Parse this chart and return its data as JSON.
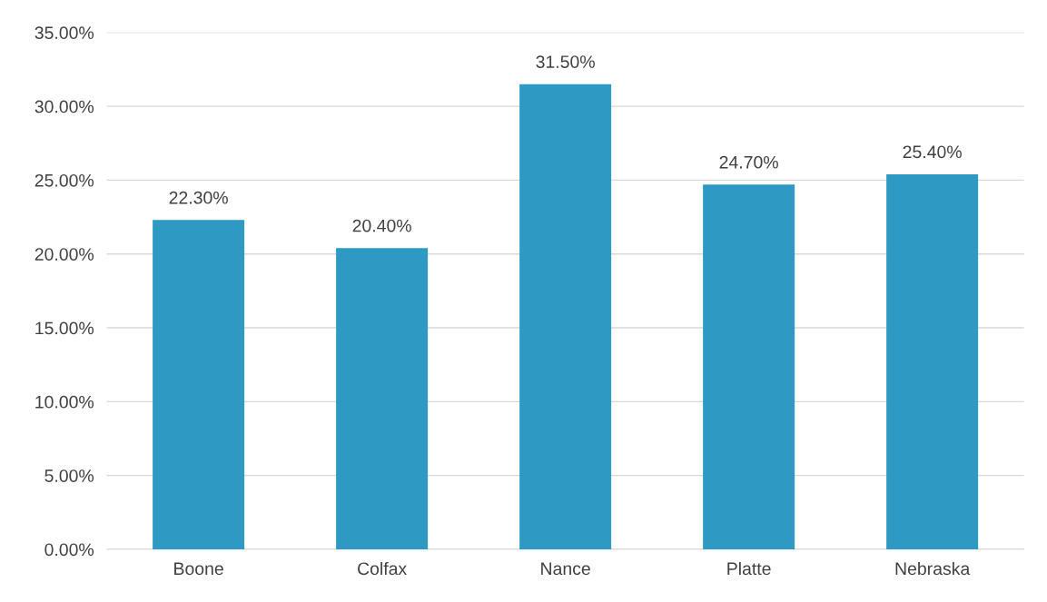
{
  "chart_data": {
    "type": "bar",
    "categories": [
      "Boone",
      "Colfax",
      "Nance",
      "Platte",
      "Nebraska"
    ],
    "values": [
      22.3,
      20.4,
      31.5,
      24.7,
      25.4
    ],
    "value_labels": [
      "22.30%",
      "20.40%",
      "31.50%",
      "24.70%",
      "25.40%"
    ],
    "color": "#2e9ac4",
    "ylim": [
      0,
      35
    ],
    "yticks": [
      {
        "value": 0,
        "label": "0.00%"
      },
      {
        "value": 5,
        "label": "5.00%"
      },
      {
        "value": 10,
        "label": "10.00%"
      },
      {
        "value": 15,
        "label": "15.00%"
      },
      {
        "value": 20,
        "label": "20.00%"
      },
      {
        "value": 25,
        "label": "25.00%"
      },
      {
        "value": 30,
        "label": "30.00%"
      },
      {
        "value": 35,
        "label": "35.00%"
      }
    ],
    "grid": "y"
  }
}
